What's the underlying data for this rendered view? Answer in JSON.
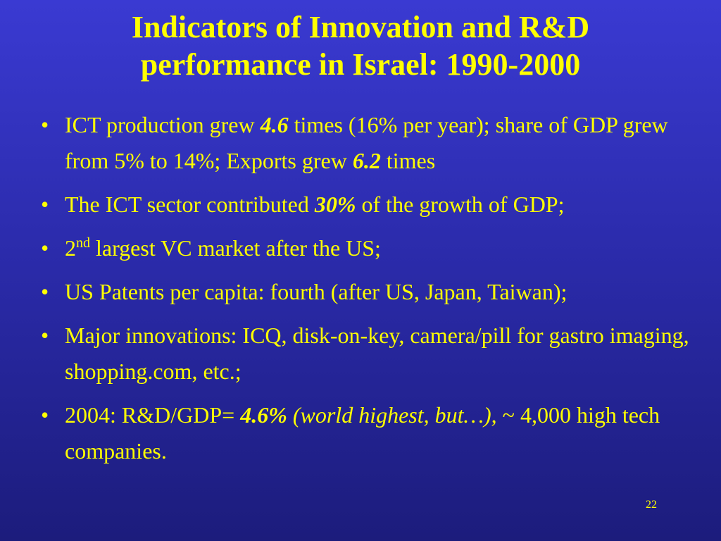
{
  "title": [
    "Indicators of Innovation and R&D",
    "performance in Israel: 1990-2000"
  ],
  "bullets": [
    [
      "ICT production grew ",
      "4.6",
      " times (16% per year); share of GDP grew from 5% to 14%; Exports grew ",
      "6.2",
      " times"
    ],
    [
      "The ICT sector contributed ",
      "30%",
      " of the growth of GDP;"
    ],
    [
      "2",
      "nd",
      " largest VC market after the US;"
    ],
    [
      "US Patents per capita: fourth (after US, Japan, Taiwan);"
    ],
    [
      "Major innovations: ICQ, disk-on-key, camera/pill for gastro imaging, shopping.com, etc.;"
    ],
    [
      "2004: R&D/GDP= ",
      "4.6%",
      " (world highest, but…),",
      " ~ 4,000 high tech companies."
    ]
  ],
  "page_number": "22"
}
